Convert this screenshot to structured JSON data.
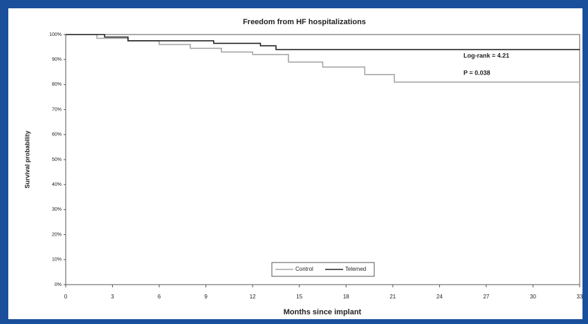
{
  "chart_data": {
    "type": "line",
    "step": true,
    "title": "Freedom from HF hospitalizations",
    "x_label": "Months since implant",
    "y_label": "Survival probability",
    "annotations": [
      "Log-rank = 4.21",
      "P = 0.038"
    ],
    "xlim": [
      0,
      33
    ],
    "xticks": [
      0,
      3,
      6,
      9,
      12,
      15,
      18,
      21,
      24,
      27,
      30,
      33
    ],
    "ylim": [
      0,
      100
    ],
    "yticks": [
      {
        "value": 0,
        "label": "0%"
      },
      {
        "value": 10,
        "label": "10%"
      },
      {
        "value": 20,
        "label": "20%"
      },
      {
        "value": 30,
        "label": "30%"
      },
      {
        "value": 40,
        "label": "40%"
      },
      {
        "value": 50,
        "label": "50%"
      },
      {
        "value": 60,
        "label": "60%"
      },
      {
        "value": 70,
        "label": "70%"
      },
      {
        "value": 80,
        "label": "80%"
      },
      {
        "value": 90,
        "label": "90%"
      },
      {
        "value": 100,
        "label": "100%"
      }
    ],
    "series": [
      {
        "name": "Control",
        "color": "#a6a6a6",
        "x": [
          0,
          2,
          4,
          6,
          8,
          10,
          12,
          14.3,
          16.5,
          19.2,
          21.1,
          33
        ],
        "values": [
          100,
          98.5,
          97.5,
          96,
          94.5,
          93,
          92,
          89,
          87,
          84,
          81,
          81
        ]
      },
      {
        "name": "Telemed",
        "color": "#222222",
        "x": [
          0,
          2.5,
          4,
          9.5,
          12.5,
          13.5,
          33
        ],
        "values": [
          100,
          99,
          97.5,
          96.5,
          95.5,
          94,
          94
        ]
      }
    ]
  }
}
